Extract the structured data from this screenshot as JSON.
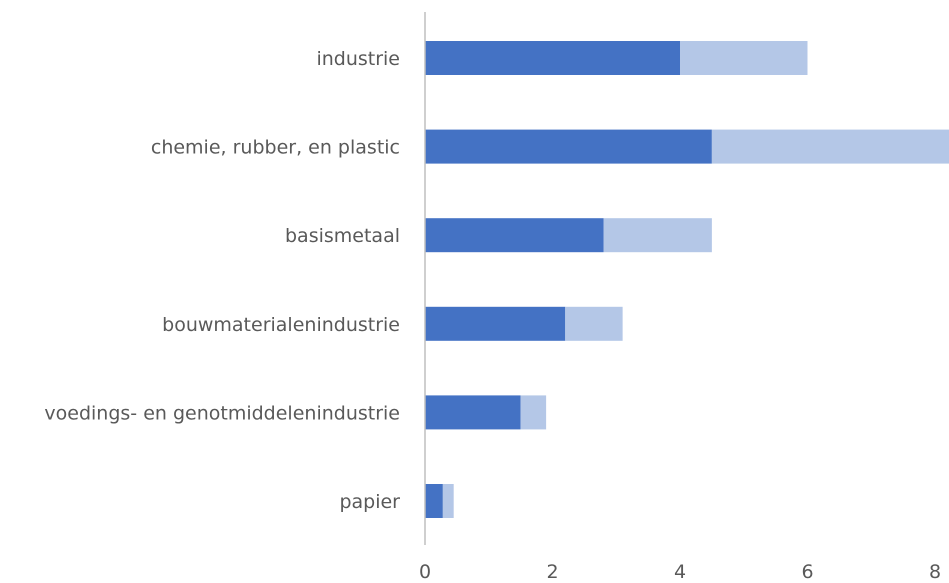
{
  "chart_data": {
    "type": "bar",
    "orientation": "horizontal",
    "stacked": true,
    "title": "",
    "xlabel": "",
    "ylabel": "",
    "categories": [
      "industrie",
      "chemie, rubber, en plastic",
      "basismetaal",
      "bouwmaterialenindustrie",
      "voedings- en genotmiddelenindustrie",
      "papier"
    ],
    "series": [
      {
        "values": [
          4.0,
          4.5,
          2.8,
          2.2,
          1.5,
          0.28
        ],
        "color": "#4472C4"
      },
      {
        "values": [
          2.0,
          3.75,
          1.7,
          0.9,
          0.4,
          0.17
        ],
        "color": "#B4C7E7"
      }
    ],
    "xlim": [
      0,
      8.25
    ],
    "xticks": [
      "0",
      "2",
      "4",
      "6",
      "8"
    ],
    "grid": false,
    "legend": "none"
  }
}
